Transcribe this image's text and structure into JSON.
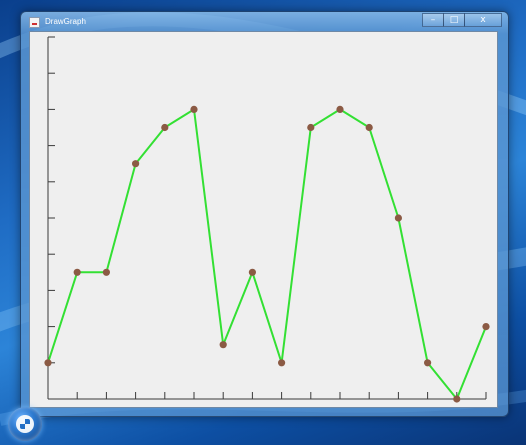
{
  "window": {
    "title": "DrawGraph",
    "minimize_glyph": "–",
    "maximize_glyph": "□",
    "close_glyph": "x"
  },
  "taskbar": {
    "start_icon": "windows-orb-icon"
  },
  "chart_data": {
    "type": "line",
    "x": [
      0,
      1,
      2,
      3,
      4,
      5,
      6,
      7,
      8,
      9,
      10,
      11,
      12,
      13,
      14,
      15
    ],
    "values": [
      1.0,
      3.5,
      3.5,
      6.5,
      7.5,
      8.0,
      1.5,
      3.5,
      1.0,
      7.5,
      8.0,
      7.5,
      5.0,
      1.0,
      0.0,
      2.0
    ],
    "ylim": [
      0,
      10
    ],
    "y_ticks": 10,
    "x_ticks": 15,
    "grid": false,
    "line_color": "#33e033",
    "point_color": "#8b5a44"
  }
}
